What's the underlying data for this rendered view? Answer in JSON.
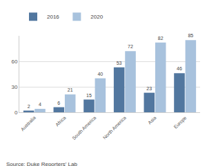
{
  "chart_data": {
    "type": "bar",
    "categories": [
      "Australia",
      "Africa",
      "South America",
      "North America",
      "Asia",
      "Europe"
    ],
    "series": [
      {
        "name": "2016",
        "color": "#52779f",
        "values": [
          2,
          6,
          15,
          53,
          23,
          46
        ]
      },
      {
        "name": "2020",
        "color": "#a8c2dd",
        "values": [
          4,
          21,
          40,
          72,
          82,
          85
        ]
      }
    ],
    "ylim": [
      0,
      90
    ],
    "yticks": [
      0,
      30,
      60
    ],
    "grid": true,
    "legend": "top left",
    "data_labels": true,
    "annotations": [
      "Source: Duke Reporters' Lab"
    ]
  }
}
